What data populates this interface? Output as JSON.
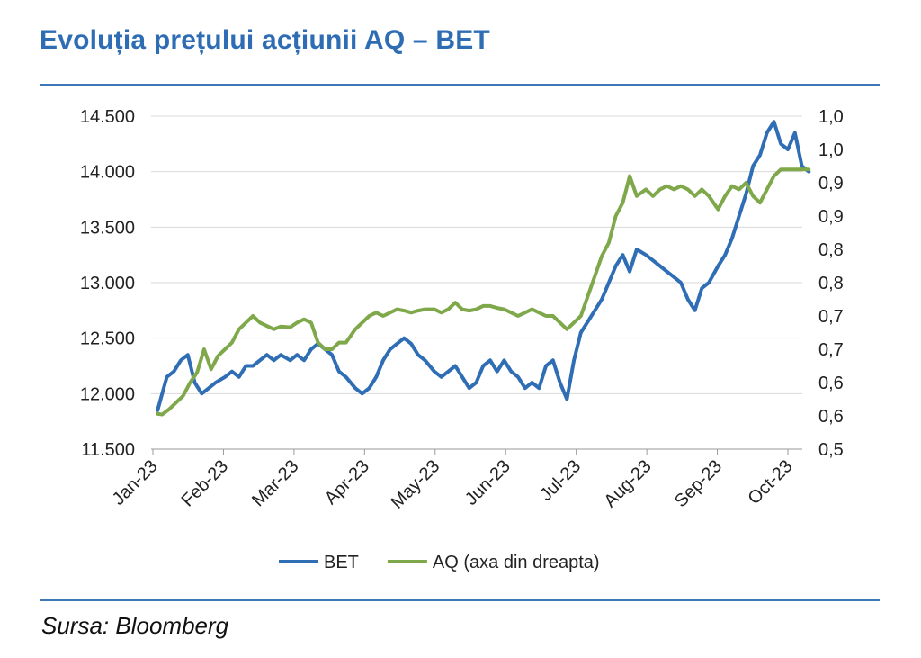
{
  "title": "Evoluția prețului acțiunii AQ – BET",
  "source": "Sursa: Bloomberg",
  "chart_data": {
    "type": "line",
    "title": "Evoluția prețului acțiunii AQ – BET",
    "x_tick_labels": [
      "Jan-23",
      "Feb-23",
      "Mar-23",
      "Apr-23",
      "May-23",
      "Jun-23",
      "Jul-23",
      "Aug-23",
      "Sep-23",
      "Oct-23"
    ],
    "y_left": {
      "ticks": [
        "11.500",
        "12.000",
        "12.500",
        "13.000",
        "13.500",
        "14.000",
        "14.500"
      ],
      "ylim": [
        11500,
        14500
      ]
    },
    "y_right": {
      "ticks": [
        "0,5",
        "0,6",
        "0,6",
        "0,7",
        "0,7",
        "0,8",
        "0,8",
        "0,9",
        "0,9",
        "1,0",
        "1,0"
      ],
      "ylim": [
        0.5,
        1.0
      ]
    },
    "grid": "horizontal",
    "legend_placement": "bottom-center",
    "series": [
      {
        "name": "BET",
        "axis": "left",
        "color": "#2f6eb5",
        "x": [
          "2023-01-03",
          "2023-01-05",
          "2023-01-07",
          "2023-01-10",
          "2023-01-13",
          "2023-01-16",
          "2023-01-19",
          "2023-01-22",
          "2023-01-25",
          "2023-01-28",
          "2023-02-01",
          "2023-02-04",
          "2023-02-07",
          "2023-02-10",
          "2023-02-13",
          "2023-02-16",
          "2023-02-19",
          "2023-02-22",
          "2023-02-25",
          "2023-03-01",
          "2023-03-04",
          "2023-03-07",
          "2023-03-10",
          "2023-03-13",
          "2023-03-16",
          "2023-03-19",
          "2023-03-22",
          "2023-03-25",
          "2023-03-29",
          "2023-04-01",
          "2023-04-04",
          "2023-04-07",
          "2023-04-10",
          "2023-04-13",
          "2023-04-16",
          "2023-04-19",
          "2023-04-22",
          "2023-04-25",
          "2023-04-28",
          "2023-05-02",
          "2023-05-05",
          "2023-05-08",
          "2023-05-11",
          "2023-05-14",
          "2023-05-17",
          "2023-05-20",
          "2023-05-23",
          "2023-05-26",
          "2023-05-29",
          "2023-06-01",
          "2023-06-04",
          "2023-06-07",
          "2023-06-10",
          "2023-06-13",
          "2023-06-16",
          "2023-06-19",
          "2023-06-22",
          "2023-06-25",
          "2023-06-28",
          "2023-07-01",
          "2023-07-04",
          "2023-07-07",
          "2023-07-10",
          "2023-07-13",
          "2023-07-16",
          "2023-07-19",
          "2023-07-22",
          "2023-07-25",
          "2023-07-28",
          "2023-08-01",
          "2023-08-04",
          "2023-08-07",
          "2023-08-10",
          "2023-08-13",
          "2023-08-16",
          "2023-08-19",
          "2023-08-22",
          "2023-08-25",
          "2023-08-28",
          "2023-09-01",
          "2023-09-04",
          "2023-09-07",
          "2023-09-10",
          "2023-09-13",
          "2023-09-16",
          "2023-09-19",
          "2023-09-22",
          "2023-09-25",
          "2023-09-28",
          "2023-10-01",
          "2023-10-04",
          "2023-10-07",
          "2023-10-10"
        ],
        "values": [
          11850,
          12000,
          12150,
          12200,
          12300,
          12350,
          12100,
          12000,
          12050,
          12100,
          12150,
          12200,
          12150,
          12250,
          12250,
          12300,
          12350,
          12300,
          12350,
          12300,
          12350,
          12300,
          12400,
          12450,
          12400,
          12350,
          12200,
          12150,
          12050,
          12000,
          12050,
          12150,
          12300,
          12400,
          12450,
          12500,
          12450,
          12350,
          12300,
          12200,
          12150,
          12200,
          12250,
          12150,
          12050,
          12100,
          12250,
          12300,
          12200,
          12300,
          12200,
          12150,
          12050,
          12100,
          12050,
          12250,
          12300,
          12100,
          11950,
          12300,
          12550,
          12650,
          12750,
          12850,
          13000,
          13150,
          13250,
          13100,
          13300,
          13250,
          13200,
          13150,
          13100,
          13050,
          13000,
          12850,
          12750,
          12950,
          13000,
          13150,
          13250,
          13400,
          13600,
          13800,
          14050,
          14150,
          14350,
          14450,
          14250,
          14200,
          14350,
          14050,
          14000
        ]
      },
      {
        "name": "AQ (axa din dreapta)",
        "axis": "right",
        "color": "#7ea84a",
        "x": [
          "2023-01-03",
          "2023-01-05",
          "2023-01-08",
          "2023-01-11",
          "2023-01-14",
          "2023-01-17",
          "2023-01-20",
          "2023-01-23",
          "2023-01-26",
          "2023-01-29",
          "2023-02-01",
          "2023-02-04",
          "2023-02-07",
          "2023-02-10",
          "2023-02-13",
          "2023-02-16",
          "2023-02-19",
          "2023-02-22",
          "2023-02-25",
          "2023-03-01",
          "2023-03-04",
          "2023-03-07",
          "2023-03-10",
          "2023-03-13",
          "2023-03-16",
          "2023-03-19",
          "2023-03-22",
          "2023-03-25",
          "2023-03-29",
          "2023-04-01",
          "2023-04-04",
          "2023-04-07",
          "2023-04-10",
          "2023-04-13",
          "2023-04-16",
          "2023-04-19",
          "2023-04-22",
          "2023-04-25",
          "2023-04-28",
          "2023-05-02",
          "2023-05-05",
          "2023-05-08",
          "2023-05-11",
          "2023-05-14",
          "2023-05-17",
          "2023-05-20",
          "2023-05-23",
          "2023-05-26",
          "2023-05-29",
          "2023-06-01",
          "2023-06-04",
          "2023-06-07",
          "2023-06-10",
          "2023-06-13",
          "2023-06-16",
          "2023-06-19",
          "2023-06-22",
          "2023-06-25",
          "2023-06-28",
          "2023-07-01",
          "2023-07-04",
          "2023-07-07",
          "2023-07-10",
          "2023-07-13",
          "2023-07-16",
          "2023-07-19",
          "2023-07-22",
          "2023-07-25",
          "2023-07-28",
          "2023-08-01",
          "2023-08-04",
          "2023-08-07",
          "2023-08-10",
          "2023-08-13",
          "2023-08-16",
          "2023-08-19",
          "2023-08-22",
          "2023-08-25",
          "2023-08-28",
          "2023-09-01",
          "2023-09-04",
          "2023-09-07",
          "2023-09-10",
          "2023-09-13",
          "2023-09-16",
          "2023-09-19",
          "2023-09-22",
          "2023-09-25",
          "2023-09-28",
          "2023-10-01",
          "2023-10-04",
          "2023-10-07",
          "2023-10-10"
        ],
        "values": [
          0.553,
          0.552,
          0.56,
          0.57,
          0.58,
          0.6,
          0.615,
          0.65,
          0.62,
          0.64,
          0.65,
          0.66,
          0.68,
          0.69,
          0.7,
          0.69,
          0.685,
          0.68,
          0.684,
          0.683,
          0.69,
          0.695,
          0.69,
          0.66,
          0.65,
          0.65,
          0.66,
          0.66,
          0.68,
          0.69,
          0.7,
          0.705,
          0.7,
          0.705,
          0.71,
          0.708,
          0.705,
          0.708,
          0.71,
          0.71,
          0.705,
          0.71,
          0.72,
          0.71,
          0.708,
          0.71,
          0.715,
          0.715,
          0.712,
          0.71,
          0.705,
          0.7,
          0.705,
          0.71,
          0.705,
          0.7,
          0.7,
          0.69,
          0.68,
          0.69,
          0.7,
          0.73,
          0.76,
          0.79,
          0.81,
          0.85,
          0.87,
          0.91,
          0.88,
          0.89,
          0.88,
          0.89,
          0.895,
          0.89,
          0.895,
          0.89,
          0.88,
          0.89,
          0.88,
          0.86,
          0.88,
          0.895,
          0.89,
          0.9,
          0.88,
          0.87,
          0.89,
          0.91,
          0.92,
          0.92,
          0.92,
          0.92,
          0.92
        ]
      }
    ]
  }
}
